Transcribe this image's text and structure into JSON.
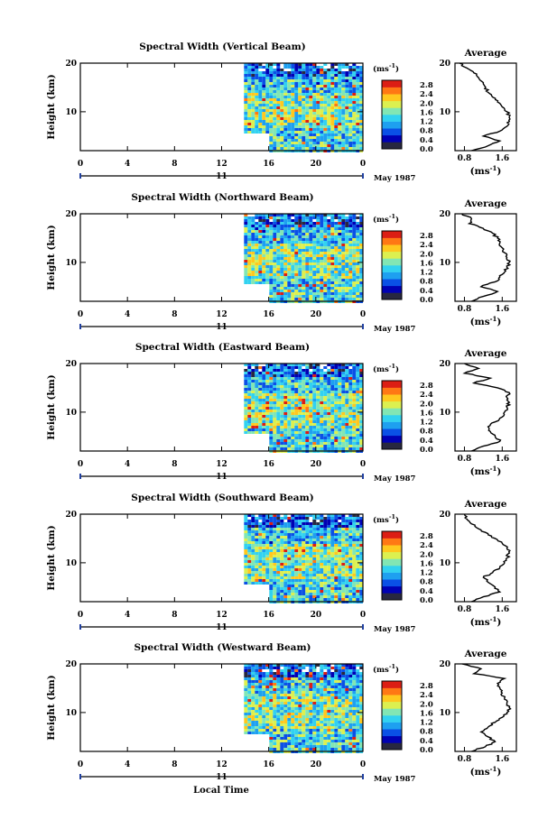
{
  "figure": {
    "xlabel": "Local Time",
    "date_label": "May 1987",
    "colorbar_unit": "(ms",
    "colorbar_unit_sup": "-1",
    "colorbar_unit_close": ")",
    "average_title": "Average",
    "colors": {
      "colormap": [
        "#282840",
        "#0000b4",
        "#0a50e6",
        "#1ea0f0",
        "#32d2f0",
        "#82e6b4",
        "#dcf050",
        "#ffc81e",
        "#ff7814",
        "#dc1e14"
      ]
    }
  },
  "chart_data": [
    {
      "type": "heatmap",
      "title": "Spectral Width (Vertical Beam)",
      "ylabel": "Height (km)",
      "xlabel": "Local Time",
      "x_ticks": [
        "0",
        "4",
        "8",
        "12",
        "16",
        "20",
        "0"
      ],
      "xlim_hours": [
        0,
        24
      ],
      "date_axis": {
        "label": "11",
        "month": "May 1987"
      },
      "y_ticks": [
        "20",
        "10"
      ],
      "ylim": [
        2,
        20
      ],
      "data_start_hour": 13.9,
      "low_gap": {
        "until_hour": 16,
        "below_km": 5
      },
      "colorbar": {
        "ticks": [
          "0.0",
          "0.4",
          "0.8",
          "1.2",
          "1.6",
          "2.0",
          "2.4",
          "2.8"
        ],
        "range": [
          0,
          3.0
        ]
      },
      "profile_axis": {
        "title": "Average",
        "x_ticks": [
          "0.8",
          "1.6"
        ],
        "xlim": [
          0.6,
          1.9
        ],
        "y_ticks": [
          "20",
          "10"
        ],
        "ylim": [
          2,
          20
        ]
      },
      "profile": {
        "heights_km": [
          2,
          3,
          4,
          5,
          6,
          7,
          8,
          9,
          10,
          11,
          12,
          13,
          14,
          15,
          16,
          17,
          18,
          19,
          20
        ],
        "values": [
          0.95,
          1.3,
          1.55,
          1.2,
          1.55,
          1.7,
          1.75,
          1.75,
          1.7,
          1.6,
          1.5,
          1.4,
          1.3,
          1.25,
          1.2,
          1.1,
          1.0,
          0.85,
          0.7
        ]
      }
    },
    {
      "type": "heatmap",
      "title": "Spectral Width (Northward Beam)",
      "ylabel": "Height (km)",
      "xlabel": "Local Time",
      "x_ticks": [
        "0",
        "4",
        "8",
        "12",
        "16",
        "20",
        "0"
      ],
      "xlim_hours": [
        0,
        24
      ],
      "date_axis": {
        "label": "11",
        "month": "May 1987"
      },
      "y_ticks": [
        "20",
        "10"
      ],
      "ylim": [
        2,
        20
      ],
      "data_start_hour": 13.9,
      "low_gap": {
        "until_hour": 16,
        "below_km": 5
      },
      "colorbar": {
        "ticks": [
          "0.0",
          "0.4",
          "0.8",
          "1.2",
          "1.6",
          "2.0",
          "2.4",
          "2.8"
        ],
        "range": [
          0,
          3.0
        ]
      },
      "profile_axis": {
        "title": "Average",
        "x_ticks": [
          "0.8",
          "1.6"
        ],
        "xlim": [
          0.6,
          1.9
        ],
        "y_ticks": [
          "20",
          "10"
        ],
        "ylim": [
          2,
          20
        ]
      },
      "profile": {
        "heights_km": [
          2,
          3,
          4,
          5,
          6,
          7,
          8,
          9,
          10,
          11,
          12,
          13,
          14,
          15,
          16,
          17,
          18,
          19,
          20
        ],
        "values": [
          0.95,
          1.2,
          1.5,
          1.15,
          1.45,
          1.55,
          1.65,
          1.7,
          1.75,
          1.7,
          1.65,
          1.6,
          1.55,
          1.5,
          1.4,
          1.2,
          0.9,
          0.95,
          0.75
        ]
      }
    },
    {
      "type": "heatmap",
      "title": "Spectral Width (Eastward Beam)",
      "ylabel": "Height (km)",
      "xlabel": "Local Time",
      "x_ticks": [
        "0",
        "4",
        "8",
        "12",
        "16",
        "20",
        "0"
      ],
      "xlim_hours": [
        0,
        24
      ],
      "date_axis": {
        "label": "11",
        "month": "May 1987"
      },
      "y_ticks": [
        "20",
        "10"
      ],
      "ylim": [
        2,
        20
      ],
      "data_start_hour": 13.9,
      "low_gap": {
        "until_hour": 16,
        "below_km": 5
      },
      "colorbar": {
        "ticks": [
          "0.0",
          "0.4",
          "0.8",
          "1.2",
          "1.6",
          "2.0",
          "2.4",
          "2.8"
        ],
        "range": [
          0,
          3.0
        ]
      },
      "profile_axis": {
        "title": "Average",
        "x_ticks": [
          "0.8",
          "1.6"
        ],
        "xlim": [
          0.6,
          1.9
        ],
        "y_ticks": [
          "20",
          "10"
        ],
        "ylim": [
          2,
          20
        ]
      },
      "profile": {
        "heights_km": [
          2,
          3,
          4,
          5,
          6,
          7,
          8,
          9,
          10,
          11,
          12,
          13,
          14,
          15,
          16,
          17,
          18,
          19,
          20
        ],
        "values": [
          0.95,
          1.2,
          1.55,
          1.45,
          1.35,
          1.3,
          1.45,
          1.6,
          1.65,
          1.7,
          1.75,
          1.7,
          1.75,
          1.5,
          1.0,
          1.35,
          0.8,
          1.1,
          0.8
        ]
      }
    },
    {
      "type": "heatmap",
      "title": "Spectral Width (Southward Beam)",
      "ylabel": "Height (km)",
      "xlabel": "Local Time",
      "x_ticks": [
        "0",
        "4",
        "8",
        "12",
        "16",
        "20",
        "0"
      ],
      "xlim_hours": [
        0,
        24
      ],
      "date_axis": {
        "label": "11",
        "month": "May 1987"
      },
      "y_ticks": [
        "20",
        "10"
      ],
      "ylim": [
        2,
        20
      ],
      "data_start_hour": 13.9,
      "low_gap": {
        "until_hour": 16,
        "below_km": 5
      },
      "colorbar": {
        "ticks": [
          "0.0",
          "0.4",
          "0.8",
          "1.2",
          "1.6",
          "2.0",
          "2.4",
          "2.8"
        ],
        "range": [
          0,
          3.0
        ]
      },
      "profile_axis": {
        "title": "Average",
        "x_ticks": [
          "0.8",
          "1.6"
        ],
        "xlim": [
          0.6,
          1.9
        ],
        "y_ticks": [
          "20",
          "10"
        ],
        "ylim": [
          2,
          20
        ]
      },
      "profile": {
        "heights_km": [
          2,
          3,
          4,
          5,
          6,
          7,
          8,
          9,
          10,
          11,
          12,
          13,
          14,
          15,
          16,
          17,
          18,
          19,
          20
        ],
        "values": [
          0.95,
          1.2,
          1.55,
          1.45,
          1.3,
          1.2,
          1.4,
          1.55,
          1.65,
          1.7,
          1.75,
          1.7,
          1.6,
          1.45,
          1.3,
          1.1,
          0.95,
          0.85,
          0.8
        ]
      }
    },
    {
      "type": "heatmap",
      "title": "Spectral Width (Westward Beam)",
      "ylabel": "Height (km)",
      "xlabel": "Local Time",
      "x_ticks": [
        "0",
        "4",
        "8",
        "12",
        "16",
        "20",
        "0"
      ],
      "xlim_hours": [
        0,
        24
      ],
      "date_axis": {
        "label": "11",
        "month": "May 1987"
      },
      "y_ticks": [
        "20",
        "10"
      ],
      "ylim": [
        2,
        20
      ],
      "data_start_hour": 13.9,
      "low_gap": {
        "until_hour": 16,
        "below_km": 5
      },
      "colorbar": {
        "ticks": [
          "0.0",
          "0.4",
          "0.8",
          "1.2",
          "1.6",
          "2.0",
          "2.4",
          "2.8"
        ],
        "range": [
          0,
          3.0
        ]
      },
      "profile_axis": {
        "title": "Average",
        "x_ticks": [
          "0.8",
          "1.6"
        ],
        "xlim": [
          0.6,
          1.9
        ],
        "y_ticks": [
          "20",
          "10"
        ],
        "ylim": [
          2,
          20
        ]
      },
      "profile": {
        "heights_km": [
          2,
          3,
          4,
          5,
          6,
          7,
          8,
          9,
          10,
          11,
          12,
          13,
          14,
          15,
          16,
          17,
          18,
          19,
          20
        ],
        "values": [
          0.95,
          1.25,
          1.45,
          1.3,
          1.15,
          1.3,
          1.45,
          1.6,
          1.7,
          1.75,
          1.7,
          1.65,
          1.6,
          1.55,
          1.5,
          1.65,
          1.0,
          1.15,
          0.75
        ]
      }
    }
  ]
}
